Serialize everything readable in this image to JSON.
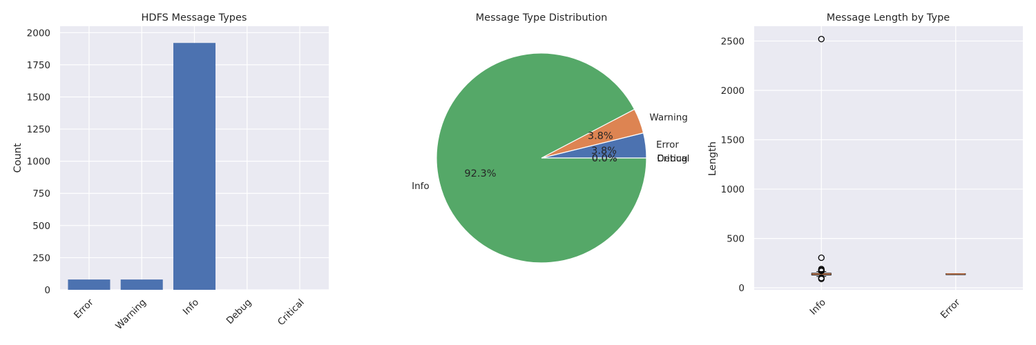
{
  "chart_data": [
    {
      "type": "bar",
      "title": "HDFS Message Types",
      "xlabel": "",
      "ylabel": "Count",
      "categories": [
        "Error",
        "Warning",
        "Info",
        "Debug",
        "Critical"
      ],
      "values": [
        80,
        80,
        1920,
        0,
        0
      ],
      "ylim": [
        0,
        2050
      ],
      "yticks": [
        0,
        250,
        500,
        750,
        1000,
        1250,
        1500,
        1750,
        2000
      ],
      "color": "#4c72b0",
      "grid": true
    },
    {
      "type": "pie",
      "title": "Message Type Distribution",
      "labels": [
        "Error",
        "Warning",
        "Info",
        "Debug",
        "Critical"
      ],
      "values": [
        80,
        80,
        1920,
        0,
        0
      ],
      "percent_labels": [
        "3.8%",
        "3.8%",
        "92.3%",
        "0.0%",
        "0.0%"
      ],
      "colors": [
        "#4c72b0",
        "#dd8452",
        "#55a868",
        "#c44e52",
        "#8172b3"
      ]
    },
    {
      "type": "box",
      "title": "Message Length by Type",
      "xlabel": "",
      "ylabel": "Length",
      "categories": [
        "Info",
        "Error"
      ],
      "ylim": [
        -20,
        2650
      ],
      "yticks": [
        0,
        500,
        1000,
        1500,
        2000,
        2500
      ],
      "boxes": [
        {
          "name": "Info",
          "q1": 130,
          "median": 140,
          "q3": 148,
          "whisker_low": 115,
          "whisker_high": 165,
          "outliers": [
            2520,
            305,
            190,
            180,
            170,
            100,
            90
          ]
        },
        {
          "name": "Error",
          "q1": 138,
          "median": 141,
          "q3": 144,
          "whisker_low": 138,
          "whisker_high": 144,
          "outliers": []
        }
      ],
      "grid": true
    }
  ]
}
